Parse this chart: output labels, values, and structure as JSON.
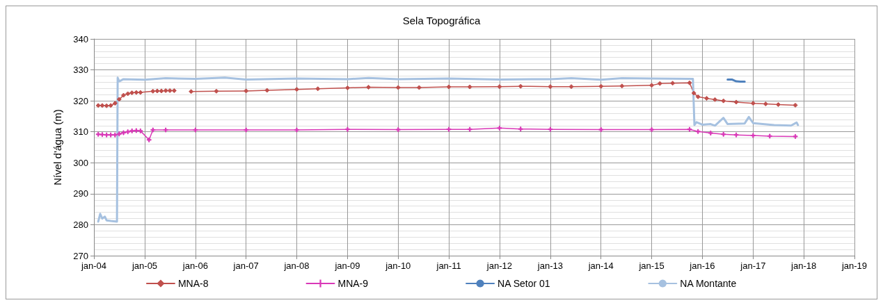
{
  "chart_data": {
    "type": "line",
    "title": "Sela Topográfica",
    "ylabel": "Nível d'água (m)",
    "xlim": [
      "2004-01",
      "2019-01"
    ],
    "xticks": [
      {
        "value": "2004-01",
        "label": "jan-04"
      },
      {
        "value": "2005-01",
        "label": "jan-05"
      },
      {
        "value": "2006-01",
        "label": "jan-06"
      },
      {
        "value": "2007-01",
        "label": "jan-07"
      },
      {
        "value": "2008-01",
        "label": "jan-08"
      },
      {
        "value": "2009-01",
        "label": "jan-09"
      },
      {
        "value": "2010-01",
        "label": "jan-10"
      },
      {
        "value": "2011-01",
        "label": "jan-11"
      },
      {
        "value": "2012-01",
        "label": "jan-12"
      },
      {
        "value": "2013-01",
        "label": "jan-13"
      },
      {
        "value": "2014-01",
        "label": "jan-14"
      },
      {
        "value": "2015-01",
        "label": "jan-15"
      },
      {
        "value": "2016-01",
        "label": "jan-16"
      },
      {
        "value": "2017-01",
        "label": "jan-17"
      },
      {
        "value": "2018-01",
        "label": "jan-18"
      },
      {
        "value": "2019-01",
        "label": "jan-19"
      }
    ],
    "ylim": [
      270,
      340
    ],
    "yticks": [
      270,
      280,
      290,
      300,
      310,
      320,
      330,
      340
    ],
    "grid": true,
    "legend": "bottom",
    "line_style": "solid",
    "series": [
      {
        "name": "MNA-8",
        "color": "#c0504d",
        "marker": "diamond",
        "x": [
          "2004-02",
          "2004-03",
          "2004-04",
          "2004-05",
          "2004-06",
          "2004-07",
          "2004-08",
          "2004-09",
          "2004-10",
          "2004-11",
          "2004-12",
          "2005-03",
          "2005-04",
          "2005-05",
          "2005-06",
          "2005-07",
          "2005-08",
          "2005-10",
          "2005-12",
          "2006-06",
          "2007-01",
          "2007-06",
          "2008-01",
          "2008-06",
          "2009-01",
          "2009-06",
          "2010-01",
          "2010-06",
          "2011-01",
          "2011-06",
          "2012-01",
          "2012-06",
          "2013-01",
          "2013-06",
          "2014-01",
          "2014-06",
          "2015-01",
          "2015-03",
          "2015-06",
          "2015-10",
          "2015-11",
          "2015-12",
          "2016-02",
          "2016-04",
          "2016-06",
          "2016-09",
          "2017-01",
          "2017-04",
          "2017-07",
          "2017-11"
        ],
        "values": [
          318.5,
          318.5,
          318.4,
          318.5,
          319.2,
          320.5,
          321.8,
          322.3,
          322.6,
          322.7,
          322.7,
          323.1,
          323.2,
          323.2,
          323.3,
          323.3,
          323.3,
          null,
          323.0,
          323.1,
          323.2,
          323.4,
          323.7,
          323.9,
          324.2,
          324.4,
          324.3,
          324.3,
          324.5,
          324.5,
          324.6,
          324.7,
          324.6,
          324.6,
          324.7,
          324.8,
          325.0,
          325.6,
          325.7,
          325.8,
          322.5,
          321.3,
          320.8,
          320.4,
          320.0,
          319.6,
          319.2,
          319.0,
          318.8,
          318.6
        ]
      },
      {
        "name": "MNA-9",
        "color": "#d938b7",
        "marker": "cross",
        "x": [
          "2004-02",
          "2004-03",
          "2004-04",
          "2004-05",
          "2004-06",
          "2004-07",
          "2004-08",
          "2004-09",
          "2004-10",
          "2004-11",
          "2004-12",
          "2005-02",
          "2005-03",
          "2005-06",
          "2006-01",
          "2007-01",
          "2008-01",
          "2009-01",
          "2010-01",
          "2011-01",
          "2011-06",
          "2012-01",
          "2012-06",
          "2013-01",
          "2014-01",
          "2015-01",
          "2015-10",
          "2015-12",
          "2016-03",
          "2016-06",
          "2016-09",
          "2017-01",
          "2017-05",
          "2017-11"
        ],
        "values": [
          309.2,
          309.1,
          309.0,
          309.0,
          309.0,
          309.3,
          309.7,
          310.0,
          310.3,
          310.4,
          310.3,
          307.4,
          310.6,
          310.6,
          310.6,
          310.6,
          310.6,
          310.8,
          310.7,
          310.8,
          310.8,
          311.2,
          310.9,
          310.8,
          310.7,
          310.7,
          310.8,
          310.1,
          309.6,
          309.2,
          309.0,
          308.8,
          308.6,
          308.5
        ]
      },
      {
        "name": "NA Setor 01",
        "color": "#4f81bd",
        "marker": "none",
        "x": [
          "2016-07",
          "2016-08",
          "2016-09",
          "2016-10",
          "2016-11"
        ],
        "values": [
          326.9,
          326.9,
          326.3,
          326.2,
          326.2
        ]
      },
      {
        "name": "NA Montante",
        "color": "#a6c1e0",
        "marker": "none",
        "x": [
          "2004-02",
          "2004-02-15",
          "2004-03",
          "2004-03-20",
          "2004-04",
          "2004-05",
          "2004-06-15",
          "2004-06-20",
          "2004-07",
          "2004-08",
          "2005-01",
          "2005-06",
          "2006-01",
          "2006-08",
          "2007-01",
          "2008-01",
          "2009-01",
          "2009-06",
          "2010-01",
          "2011-01",
          "2012-01",
          "2013-01",
          "2013-06",
          "2014-01",
          "2014-06",
          "2015-01",
          "2015-10-25",
          "2015-11-05",
          "2015-11-20",
          "2016-01",
          "2016-03",
          "2016-04",
          "2016-06",
          "2016-07",
          "2016-11",
          "2016-12",
          "2017-01",
          "2017-06",
          "2017-10",
          "2017-11-10",
          "2017-11-20"
        ],
        "values": [
          281.0,
          283.5,
          282.0,
          282.6,
          281.4,
          281.2,
          281.0,
          327.5,
          326.3,
          327.0,
          326.8,
          327.3,
          327.1,
          327.5,
          326.9,
          327.2,
          327.0,
          327.4,
          327.0,
          327.2,
          326.9,
          327.0,
          327.3,
          326.8,
          327.3,
          327.2,
          327.1,
          312.2,
          313.1,
          312.3,
          312.5,
          312.0,
          314.5,
          312.5,
          312.7,
          314.8,
          312.8,
          312.2,
          312.0,
          313.0,
          312.2
        ]
      }
    ]
  }
}
